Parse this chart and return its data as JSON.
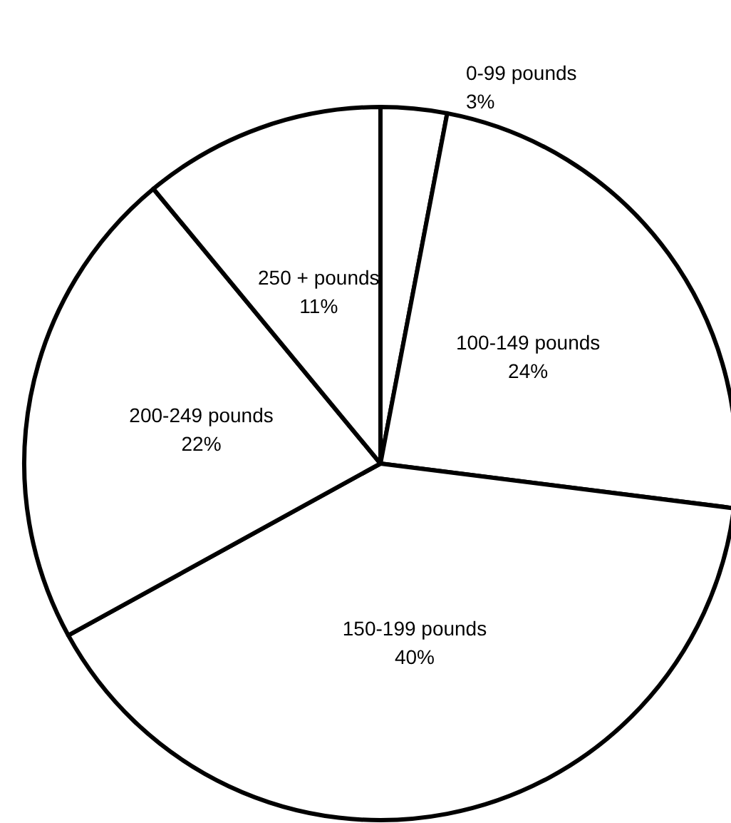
{
  "chart_data": {
    "type": "pie",
    "categories": [
      "0-99 pounds",
      "100-149 pounds",
      "150-199 pounds",
      "200-249 pounds",
      "250 + pounds"
    ],
    "values": [
      3,
      24,
      40,
      22,
      11
    ],
    "value_labels": [
      "3%",
      "24%",
      "40%",
      "22%",
      "11%"
    ],
    "colors": [
      "#ffffff",
      "#ffffff",
      "#ffffff",
      "#ffffff",
      "#ffffff"
    ],
    "legend": false
  }
}
